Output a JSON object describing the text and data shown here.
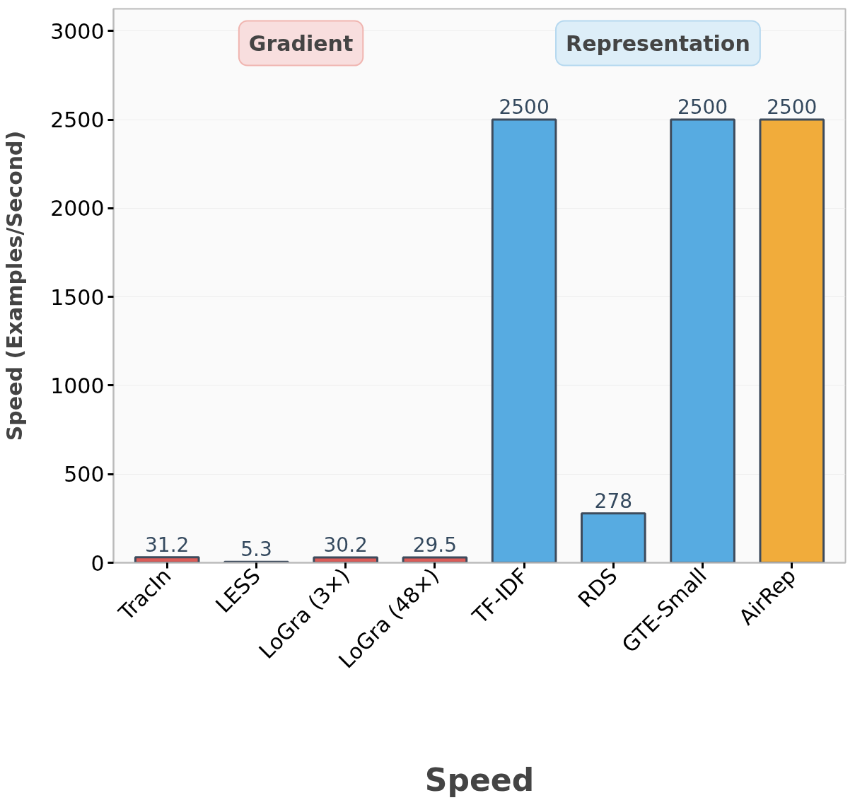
{
  "chart_data": {
    "type": "bar",
    "xlabel": "Speed",
    "ylabel": "Speed (Examples/Second)",
    "categories": [
      "TracIn",
      "LESS",
      "LoGra (3×)",
      "LoGra (48×)",
      "TF-IDF",
      "RDS",
      "GTE-Small",
      "AirRep"
    ],
    "values": [
      31.2,
      5.3,
      30.2,
      29.5,
      2500,
      278,
      2500,
      2500
    ],
    "colors": [
      "#d9534f",
      "#d9534f",
      "#d9534f",
      "#d9534f",
      "#4ea6df",
      "#4ea6df",
      "#4ea6df",
      "#f0a830"
    ],
    "ylim": [
      0,
      3125
    ],
    "yticks": [
      0,
      500,
      1000,
      1500,
      2000,
      2500,
      3000
    ],
    "grid": "y",
    "data_labels": true,
    "annotations": [
      "Gradient",
      "Representation"
    ]
  }
}
